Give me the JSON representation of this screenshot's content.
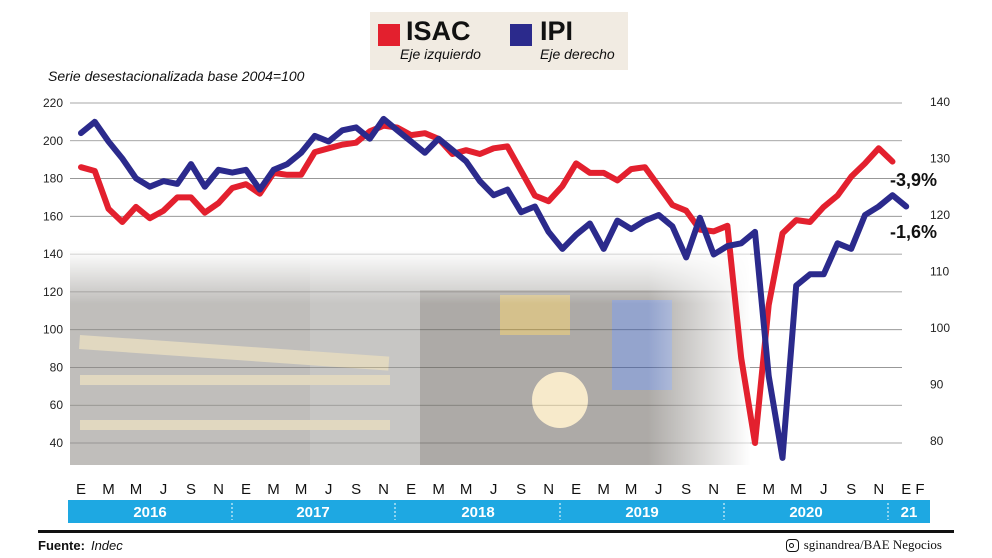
{
  "chart_data": {
    "type": "line",
    "subtitle": "Serie desestacionalizada base 2004=100",
    "legend_position": "top-center",
    "grid": "horizontal",
    "x_month_labels": [
      "E",
      "M",
      "M",
      "J",
      "S",
      "N",
      "E",
      "M",
      "M",
      "J",
      "S",
      "N",
      "E",
      "M",
      "M",
      "J",
      "S",
      "N",
      "E",
      "M",
      "M",
      "J",
      "S",
      "N",
      "E",
      "M",
      "M",
      "J",
      "S",
      "N",
      "E",
      "F"
    ],
    "years": [
      "2016",
      "2017",
      "2018",
      "2019",
      "2020",
      "21"
    ],
    "y_left": {
      "ticks": [
        40,
        60,
        80,
        100,
        120,
        140,
        160,
        180,
        200,
        220
      ],
      "range": [
        40,
        220
      ]
    },
    "y_right": {
      "ticks": [
        80,
        90,
        100,
        110,
        120,
        130,
        140
      ],
      "range": [
        78,
        142
      ]
    },
    "series": [
      {
        "name": "ISAC",
        "axis_note": "Eje izquierdo",
        "axis": "left",
        "color": "#e3202e",
        "end_label": "-3,9%",
        "values": [
          186,
          184,
          164,
          157,
          165,
          159,
          163,
          170,
          170,
          162,
          167,
          175,
          177,
          172,
          183,
          182,
          182,
          194,
          196,
          198,
          199,
          205,
          208,
          207,
          203,
          204,
          201,
          193,
          195,
          193,
          196,
          197,
          184,
          171,
          168,
          176,
          188,
          183,
          183,
          179,
          185,
          186,
          176,
          166,
          163,
          153,
          152,
          155,
          85,
          40,
          113,
          151,
          158,
          157,
          165,
          171,
          181,
          188,
          196,
          189
        ],
        "x": [
          "2016-01",
          "2016-02",
          "2016-03",
          "2016-04",
          "2016-05",
          "2016-06",
          "2016-07",
          "2016-08",
          "2016-09",
          "2016-10",
          "2016-11",
          "2016-12",
          "2017-01",
          "2017-02",
          "2017-03",
          "2017-04",
          "2017-05",
          "2017-06",
          "2017-07",
          "2017-08",
          "2017-09",
          "2017-10",
          "2017-11",
          "2017-12",
          "2018-01",
          "2018-02",
          "2018-03",
          "2018-04",
          "2018-05",
          "2018-06",
          "2018-07",
          "2018-08",
          "2018-09",
          "2018-10",
          "2018-11",
          "2018-12",
          "2019-01",
          "2019-02",
          "2019-03",
          "2019-04",
          "2019-05",
          "2019-06",
          "2019-07",
          "2019-08",
          "2019-09",
          "2019-10",
          "2019-11",
          "2019-12",
          "2020-01",
          "2020-02",
          "2020-03",
          "2020-04",
          "2020-05",
          "2020-06",
          "2020-07",
          "2020-08",
          "2020-09",
          "2020-10",
          "2020-11",
          "2020-12"
        ]
      },
      {
        "name": "IPI",
        "axis_note": "Eje derecho",
        "axis": "right",
        "color": "#2b2a8c",
        "end_label": "-1,6%",
        "values": [
          134.5,
          136.5,
          133,
          130,
          126.5,
          125,
          126,
          125.5,
          129,
          125,
          128,
          127.5,
          128,
          124.5,
          128,
          129,
          131,
          134,
          133,
          135,
          135.5,
          133.5,
          137,
          135,
          133,
          131,
          133.5,
          131.5,
          129.5,
          126,
          123.5,
          124.5,
          120.5,
          121.5,
          117,
          114,
          116.5,
          118.5,
          114,
          119,
          117.5,
          119,
          120,
          118,
          112.5,
          119.5,
          113,
          114.5,
          115,
          117,
          91.5,
          77,
          107.5,
          109.5,
          109.5,
          115,
          114,
          120,
          121.5,
          123.5,
          121.5
        ],
        "x": [
          "2016-01",
          "2016-02",
          "2016-03",
          "2016-04",
          "2016-05",
          "2016-06",
          "2016-07",
          "2016-08",
          "2016-09",
          "2016-10",
          "2016-11",
          "2016-12",
          "2017-01",
          "2017-02",
          "2017-03",
          "2017-04",
          "2017-05",
          "2017-06",
          "2017-07",
          "2017-08",
          "2017-09",
          "2017-10",
          "2017-11",
          "2017-12",
          "2018-01",
          "2018-02",
          "2018-03",
          "2018-04",
          "2018-05",
          "2018-06",
          "2018-07",
          "2018-08",
          "2018-09",
          "2018-10",
          "2018-11",
          "2018-12",
          "2019-01",
          "2019-02",
          "2019-03",
          "2019-04",
          "2019-05",
          "2019-06",
          "2019-07",
          "2019-08",
          "2019-09",
          "2019-10",
          "2019-11",
          "2019-12",
          "2020-01",
          "2020-02",
          "2020-03",
          "2020-04",
          "2020-05",
          "2020-06",
          "2020-07",
          "2020-08",
          "2020-09",
          "2020-10",
          "2020-11",
          "2020-12",
          "2021-01"
        ]
      }
    ]
  },
  "source": {
    "label": "Fuente:",
    "value": "Indec"
  },
  "credit": "sginandrea/BAE Negocios"
}
